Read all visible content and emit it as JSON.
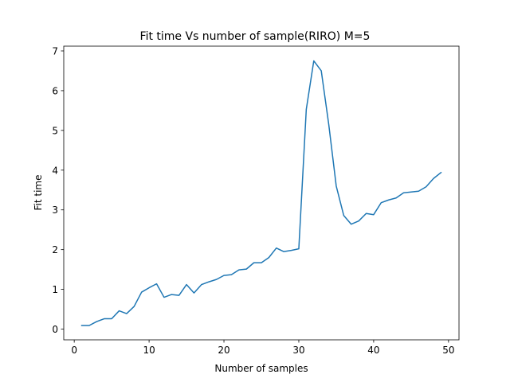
{
  "chart_data": {
    "type": "line",
    "title": "Fit time Vs number of sample(RIRO) M=5",
    "xlabel": "Number of samples",
    "ylabel": "Fit time",
    "xlim": [
      -1.4,
      51.4
    ],
    "ylim": [
      -0.27,
      7.12
    ],
    "xticks": [
      0,
      10,
      20,
      30,
      40,
      50
    ],
    "yticks": [
      0,
      1,
      2,
      3,
      4,
      5,
      6,
      7
    ],
    "grid": false,
    "series": [
      {
        "color": "#1f77b4",
        "x": [
          1,
          2,
          3,
          4,
          5,
          6,
          7,
          8,
          9,
          10,
          11,
          12,
          13,
          14,
          15,
          16,
          17,
          18,
          19,
          20,
          21,
          22,
          23,
          24,
          25,
          26,
          27,
          28,
          29,
          30,
          31,
          32,
          33,
          34,
          35,
          36,
          37,
          38,
          39,
          40,
          41,
          42,
          43,
          44,
          45,
          46,
          47,
          48,
          49
        ],
        "y": [
          0.09,
          0.09,
          0.19,
          0.26,
          0.26,
          0.46,
          0.39,
          0.57,
          0.93,
          1.04,
          1.14,
          0.8,
          0.87,
          0.85,
          1.12,
          0.91,
          1.12,
          1.19,
          1.25,
          1.35,
          1.37,
          1.49,
          1.51,
          1.67,
          1.67,
          1.8,
          2.04,
          1.95,
          1.98,
          2.02,
          5.53,
          6.75,
          6.5,
          5.15,
          3.6,
          2.86,
          2.64,
          2.72,
          2.91,
          2.88,
          3.18,
          3.25,
          3.3,
          3.43,
          3.45,
          3.47,
          3.58,
          3.79,
          3.94
        ]
      }
    ]
  }
}
